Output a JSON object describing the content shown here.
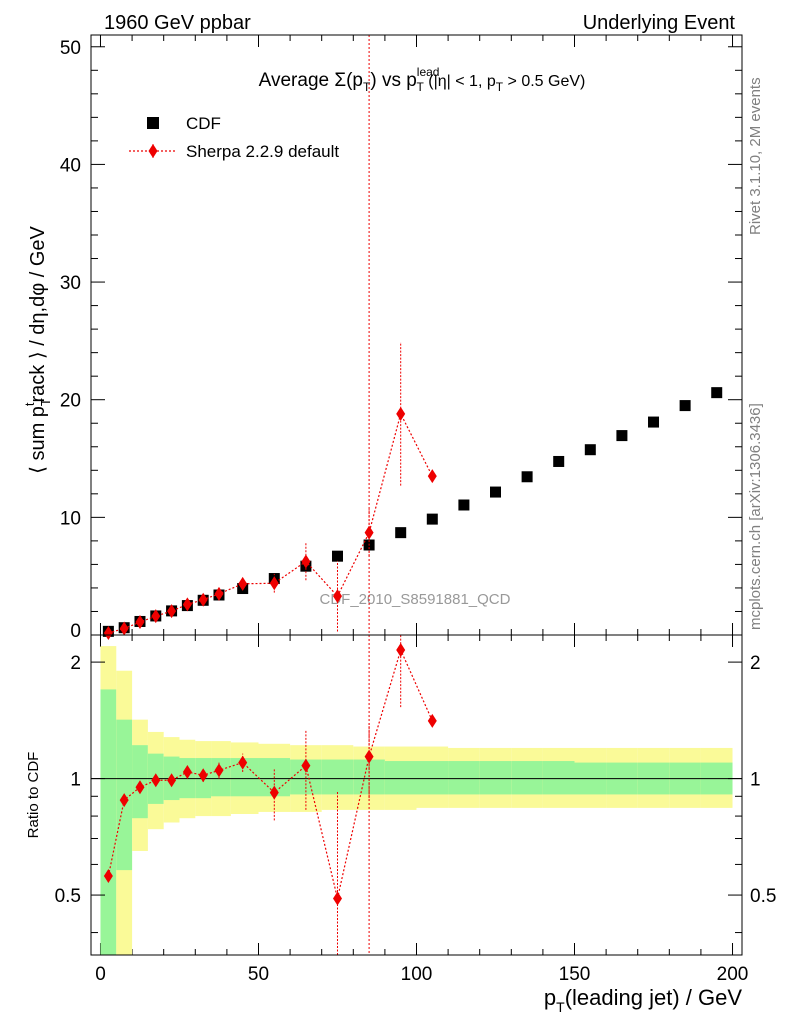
{
  "header": {
    "left": "1960 GeV ppbar",
    "right": "Underlying Event"
  },
  "title": {
    "prefix": "Average ",
    "sigma": "Σ(p",
    "sub1": "T",
    "mid": ") vs p",
    "sup": "lead",
    "sub2": "T",
    "suffix1": " (|η| < 1, p",
    "sub3": "T",
    "suffix2": " > 0.5 GeV)"
  },
  "side_labels": {
    "rivet": "Rivet 3.1.10,  2M events",
    "mcplots": "mcplots.cern.ch [arXiv:1306.3436]"
  },
  "watermark": "CDF_2010_S8591881_QCD",
  "axes": {
    "ylabel_main": "⟨ sum p_T^track ⟩ / dη,dφ / GeV",
    "ylabel_ratio": "Ratio to CDF",
    "xlabel": "p_T(leading jet) / GeV",
    "xticks": [
      "0",
      "50",
      "100",
      "150",
      "200"
    ],
    "yticks_main": [
      "0",
      "10",
      "20",
      "30",
      "40",
      "50"
    ],
    "yticks_ratio": [
      "0.5",
      "1",
      "2"
    ]
  },
  "legend": {
    "cdf": "CDF",
    "sherpa": "Sherpa 2.2.9 default"
  },
  "colors": {
    "cdf": "#000000",
    "sherpa": "#ee0000",
    "band_inner": "#98f598",
    "band_outer": "#fafa98"
  },
  "chart_data": {
    "type": "scatter",
    "title": "Average Σ(pT) vs pT lead (|η| < 1, pT > 0.5 GeV)",
    "xlabel": "pT(leading jet) / GeV",
    "ylabel": "⟨ sum pT track ⟩ / dη,dφ / GeV",
    "xlim": [
      -3,
      203
    ],
    "ylim": [
      0,
      51
    ],
    "ratio_ylim": [
      0.35,
      2.35
    ],
    "ratio_scale": "log",
    "legend_position": "top-left",
    "vertical_line_x": 85,
    "series": [
      {
        "name": "CDF",
        "marker": "square",
        "x": [
          2.5,
          7.5,
          12.5,
          17.5,
          22.5,
          27.5,
          32.5,
          37.5,
          45,
          55,
          65,
          75,
          85,
          95,
          105,
          115,
          125,
          135,
          145,
          155,
          165,
          175,
          185,
          195
        ],
        "y": [
          0.31,
          0.62,
          1.15,
          1.62,
          2.05,
          2.5,
          2.95,
          3.4,
          3.95,
          4.8,
          5.85,
          6.7,
          7.65,
          8.7,
          9.85,
          11.05,
          12.15,
          13.45,
          14.75,
          15.75,
          16.95,
          18.1,
          19.5,
          20.6
        ],
        "band_inner_hi": [
          1.7,
          1.42,
          1.22,
          1.16,
          1.14,
          1.13,
          1.13,
          1.13,
          1.13,
          1.13,
          1.12,
          1.12,
          1.12,
          1.11,
          1.11,
          1.11,
          1.11,
          1.11,
          1.11,
          1.1,
          1.1,
          1.1,
          1.1,
          1.1
        ],
        "band_inner_lo": [
          0.3,
          0.58,
          0.79,
          0.86,
          0.88,
          0.89,
          0.89,
          0.9,
          0.9,
          0.9,
          0.91,
          0.91,
          0.91,
          0.91,
          0.91,
          0.91,
          0.91,
          0.91,
          0.91,
          0.91,
          0.91,
          0.91,
          0.91,
          0.91
        ],
        "band_outer_hi": [
          2.2,
          1.9,
          1.42,
          1.32,
          1.28,
          1.26,
          1.25,
          1.25,
          1.24,
          1.23,
          1.22,
          1.22,
          1.21,
          1.21,
          1.21,
          1.2,
          1.2,
          1.2,
          1.2,
          1.2,
          1.2,
          1.2,
          1.2,
          1.2
        ],
        "band_outer_lo": [
          0.3,
          0.3,
          0.65,
          0.74,
          0.77,
          0.79,
          0.8,
          0.8,
          0.81,
          0.82,
          0.82,
          0.83,
          0.83,
          0.83,
          0.84,
          0.84,
          0.84,
          0.84,
          0.84,
          0.84,
          0.84,
          0.84,
          0.84,
          0.84
        ]
      },
      {
        "name": "Sherpa 2.2.9 default",
        "marker": "diamond",
        "x": [
          2.5,
          7.5,
          12.5,
          17.5,
          22.5,
          27.5,
          32.5,
          37.5,
          45,
          55,
          65,
          75,
          85,
          95,
          105
        ],
        "y": [
          0.17,
          0.55,
          1.1,
          1.6,
          2.03,
          2.6,
          3.0,
          3.5,
          4.35,
          4.4,
          6.25,
          3.3,
          8.7,
          18.8,
          13.5
        ],
        "yerr": [
          0.03,
          0.05,
          0.08,
          0.1,
          0.1,
          0.15,
          0.2,
          0.3,
          0.4,
          0.8,
          1.6,
          3.0,
          2.0,
          6.1,
          0.5
        ],
        "ratio": [
          0.56,
          0.88,
          0.95,
          0.99,
          0.99,
          1.04,
          1.02,
          1.05,
          1.1,
          0.92,
          1.08,
          0.49,
          1.14,
          2.15,
          1.41
        ],
        "ratio_err": [
          0.02,
          0.02,
          0.02,
          0.03,
          0.03,
          0.03,
          0.04,
          0.05,
          0.06,
          0.14,
          0.25,
          0.44,
          0.25,
          0.62,
          0.04
        ]
      }
    ]
  }
}
